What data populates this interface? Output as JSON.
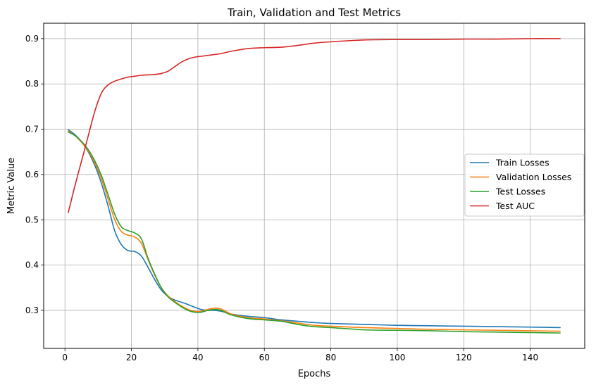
{
  "chart_data": {
    "type": "line",
    "title": "Train, Validation and Test Metrics",
    "xlabel": "Epochs",
    "ylabel": "Metric Value",
    "xlim": [
      -6.4,
      156.4
    ],
    "ylim": [
      0.216,
      0.934
    ],
    "xticks": [
      0,
      20,
      40,
      60,
      80,
      100,
      120,
      140
    ],
    "yticks": [
      0.3,
      0.4,
      0.5,
      0.6,
      0.7,
      0.8,
      0.9
    ],
    "grid": true,
    "legend_position": "center-right",
    "series": [
      {
        "name": "Train Losses",
        "color": "#1f77b4",
        "x": [
          1,
          3,
          5,
          7,
          9,
          11,
          13,
          15,
          17,
          19,
          21,
          23,
          25,
          27,
          29,
          31,
          33,
          35,
          37,
          39,
          41,
          43,
          45,
          47,
          50,
          55,
          60,
          65,
          70,
          75,
          80,
          90,
          100,
          110,
          120,
          130,
          140,
          149
        ],
        "values": [
          0.699,
          0.688,
          0.672,
          0.65,
          0.62,
          0.58,
          0.53,
          0.475,
          0.445,
          0.432,
          0.43,
          0.42,
          0.395,
          0.368,
          0.345,
          0.331,
          0.323,
          0.318,
          0.313,
          0.307,
          0.302,
          0.3,
          0.3,
          0.298,
          0.292,
          0.287,
          0.284,
          0.279,
          0.276,
          0.273,
          0.271,
          0.269,
          0.267,
          0.266,
          0.265,
          0.264,
          0.263,
          0.262
        ]
      },
      {
        "name": "Validation Losses",
        "color": "#ff7f0e",
        "x": [
          1,
          3,
          5,
          7,
          9,
          11,
          13,
          15,
          17,
          19,
          21,
          23,
          25,
          27,
          29,
          31,
          33,
          35,
          37,
          39,
          41,
          43,
          45,
          47,
          50,
          55,
          60,
          65,
          70,
          75,
          80,
          90,
          100,
          110,
          120,
          130,
          140,
          149
        ],
        "values": [
          0.696,
          0.686,
          0.671,
          0.652,
          0.625,
          0.59,
          0.545,
          0.5,
          0.474,
          0.466,
          0.462,
          0.448,
          0.412,
          0.378,
          0.35,
          0.332,
          0.32,
          0.31,
          0.302,
          0.298,
          0.298,
          0.302,
          0.305,
          0.303,
          0.292,
          0.284,
          0.281,
          0.277,
          0.272,
          0.267,
          0.265,
          0.262,
          0.26,
          0.258,
          0.257,
          0.256,
          0.255,
          0.254
        ]
      },
      {
        "name": "Test Losses",
        "color": "#2ca02c",
        "x": [
          1,
          3,
          5,
          7,
          9,
          11,
          13,
          15,
          17,
          19,
          21,
          23,
          25,
          27,
          29,
          31,
          33,
          35,
          37,
          39,
          41,
          43,
          45,
          47,
          50,
          55,
          60,
          65,
          70,
          75,
          80,
          90,
          100,
          110,
          120,
          130,
          140,
          149
        ],
        "values": [
          0.694,
          0.686,
          0.673,
          0.655,
          0.63,
          0.597,
          0.555,
          0.512,
          0.484,
          0.476,
          0.471,
          0.458,
          0.415,
          0.38,
          0.35,
          0.33,
          0.318,
          0.308,
          0.3,
          0.296,
          0.296,
          0.3,
          0.302,
          0.3,
          0.29,
          0.282,
          0.279,
          0.276,
          0.269,
          0.264,
          0.262,
          0.257,
          0.256,
          0.255,
          0.253,
          0.252,
          0.251,
          0.25
        ]
      },
      {
        "name": " Test AUC",
        "color": "#d62728",
        "x": [
          1,
          3,
          5,
          7,
          9,
          11,
          13,
          15,
          17,
          19,
          21,
          23,
          25,
          27,
          29,
          31,
          33,
          35,
          37,
          39,
          41,
          43,
          45,
          47,
          50,
          55,
          60,
          65,
          70,
          75,
          80,
          90,
          100,
          110,
          120,
          130,
          140,
          149
        ],
        "values": [
          0.516,
          0.575,
          0.63,
          0.685,
          0.74,
          0.78,
          0.798,
          0.806,
          0.811,
          0.815,
          0.817,
          0.819,
          0.82,
          0.821,
          0.823,
          0.828,
          0.838,
          0.848,
          0.855,
          0.859,
          0.861,
          0.863,
          0.865,
          0.867,
          0.872,
          0.878,
          0.88,
          0.881,
          0.885,
          0.89,
          0.893,
          0.897,
          0.898,
          0.898,
          0.899,
          0.899,
          0.9,
          0.9
        ]
      }
    ]
  }
}
